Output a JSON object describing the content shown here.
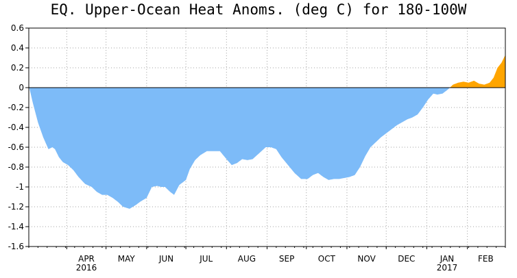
{
  "chart_data": {
    "type": "area",
    "title": "EQ. Upper-Ocean Heat Anoms. (deg C) for 180-100W",
    "xlabel": "",
    "ylabel": "",
    "ylim": [
      -1.6,
      0.6
    ],
    "yticks": [
      "0.6",
      "0.4",
      "0.2",
      "0",
      "-0.2",
      "-0.4",
      "-0.6",
      "-0.8",
      "-1",
      "-1.2",
      "-1.4",
      "-1.6"
    ],
    "xlim": [
      "2016-03-03",
      "2017-03-02"
    ],
    "month_labels": [
      {
        "date": "2016-04-01",
        "label": "APR",
        "year": "2016"
      },
      {
        "date": "2016-05-01",
        "label": "MAY",
        "year": ""
      },
      {
        "date": "2016-06-01",
        "label": "JUN",
        "year": ""
      },
      {
        "date": "2016-07-01",
        "label": "JUL",
        "year": ""
      },
      {
        "date": "2016-08-01",
        "label": "AUG",
        "year": ""
      },
      {
        "date": "2016-09-01",
        "label": "SEP",
        "year": ""
      },
      {
        "date": "2016-10-01",
        "label": "OCT",
        "year": ""
      },
      {
        "date": "2016-11-01",
        "label": "NOV",
        "year": ""
      },
      {
        "date": "2016-12-01",
        "label": "DEC",
        "year": ""
      },
      {
        "date": "2017-01-01",
        "label": "JAN",
        "year": "2017"
      },
      {
        "date": "2017-02-01",
        "label": "FEB",
        "year": ""
      }
    ],
    "grid": true,
    "positive_color": "#FFA500",
    "negative_color": "#7DBBF8",
    "series": [
      {
        "x": [
          "2016-03-03",
          "2016-03-06",
          "2016-03-10",
          "2016-03-14",
          "2016-03-18",
          "2016-03-21",
          "2016-03-23",
          "2016-03-26",
          "2016-03-29",
          "2016-04-02",
          "2016-04-06",
          "2016-04-10",
          "2016-04-15",
          "2016-04-20",
          "2016-04-24",
          "2016-04-28",
          "2016-05-02",
          "2016-05-06",
          "2016-05-10",
          "2016-05-14",
          "2016-05-19",
          "2016-05-24",
          "2016-05-27",
          "2016-06-01",
          "2016-06-05",
          "2016-06-09",
          "2016-06-12",
          "2016-06-15",
          "2016-06-19",
          "2016-06-22",
          "2016-06-26",
          "2016-07-01",
          "2016-07-04",
          "2016-07-08",
          "2016-07-12",
          "2016-07-17",
          "2016-07-22",
          "2016-07-27",
          "2016-08-01",
          "2016-08-05",
          "2016-08-09",
          "2016-08-13",
          "2016-08-17",
          "2016-08-21",
          "2016-08-26",
          "2016-08-31",
          "2016-09-04",
          "2016-09-08",
          "2016-09-12",
          "2016-09-17",
          "2016-09-22",
          "2016-09-27",
          "2016-10-02",
          "2016-10-06",
          "2016-10-10",
          "2016-10-14",
          "2016-10-18",
          "2016-10-22",
          "2016-10-26",
          "2016-10-30",
          "2016-11-03",
          "2016-11-07",
          "2016-11-11",
          "2016-11-15",
          "2016-11-19",
          "2016-11-23",
          "2016-11-27",
          "2016-12-01",
          "2016-12-05",
          "2016-12-09",
          "2016-12-13",
          "2016-12-17",
          "2016-12-21",
          "2016-12-25",
          "2016-12-29",
          "2017-01-02",
          "2017-01-06",
          "2017-01-09",
          "2017-01-13",
          "2017-01-17",
          "2017-01-21",
          "2017-01-25",
          "2017-01-29",
          "2017-02-02",
          "2017-02-06",
          "2017-02-10",
          "2017-02-14",
          "2017-02-18",
          "2017-02-21",
          "2017-02-24",
          "2017-02-27",
          "2017-03-02"
        ],
        "y": [
          0.02,
          -0.15,
          -0.35,
          -0.5,
          -0.62,
          -0.6,
          -0.62,
          -0.7,
          -0.75,
          -0.78,
          -0.83,
          -0.9,
          -0.97,
          -1.0,
          -1.05,
          -1.08,
          -1.08,
          -1.11,
          -1.15,
          -1.2,
          -1.22,
          -1.18,
          -1.15,
          -1.11,
          -1.0,
          -0.99,
          -1.0,
          -1.0,
          -1.05,
          -1.08,
          -0.98,
          -0.93,
          -0.82,
          -0.73,
          -0.68,
          -0.64,
          -0.64,
          -0.64,
          -0.72,
          -0.78,
          -0.76,
          -0.72,
          -0.73,
          -0.72,
          -0.66,
          -0.6,
          -0.6,
          -0.62,
          -0.7,
          -0.78,
          -0.86,
          -0.92,
          -0.92,
          -0.88,
          -0.86,
          -0.9,
          -0.93,
          -0.92,
          -0.92,
          -0.91,
          -0.9,
          -0.88,
          -0.8,
          -0.69,
          -0.6,
          -0.55,
          -0.5,
          -0.46,
          -0.42,
          -0.38,
          -0.35,
          -0.32,
          -0.3,
          -0.27,
          -0.2,
          -0.12,
          -0.06,
          -0.07,
          -0.06,
          -0.02,
          0.03,
          0.05,
          0.06,
          0.05,
          0.07,
          0.04,
          0.03,
          0.05,
          0.1,
          0.2,
          0.25,
          0.33
        ]
      }
    ]
  }
}
